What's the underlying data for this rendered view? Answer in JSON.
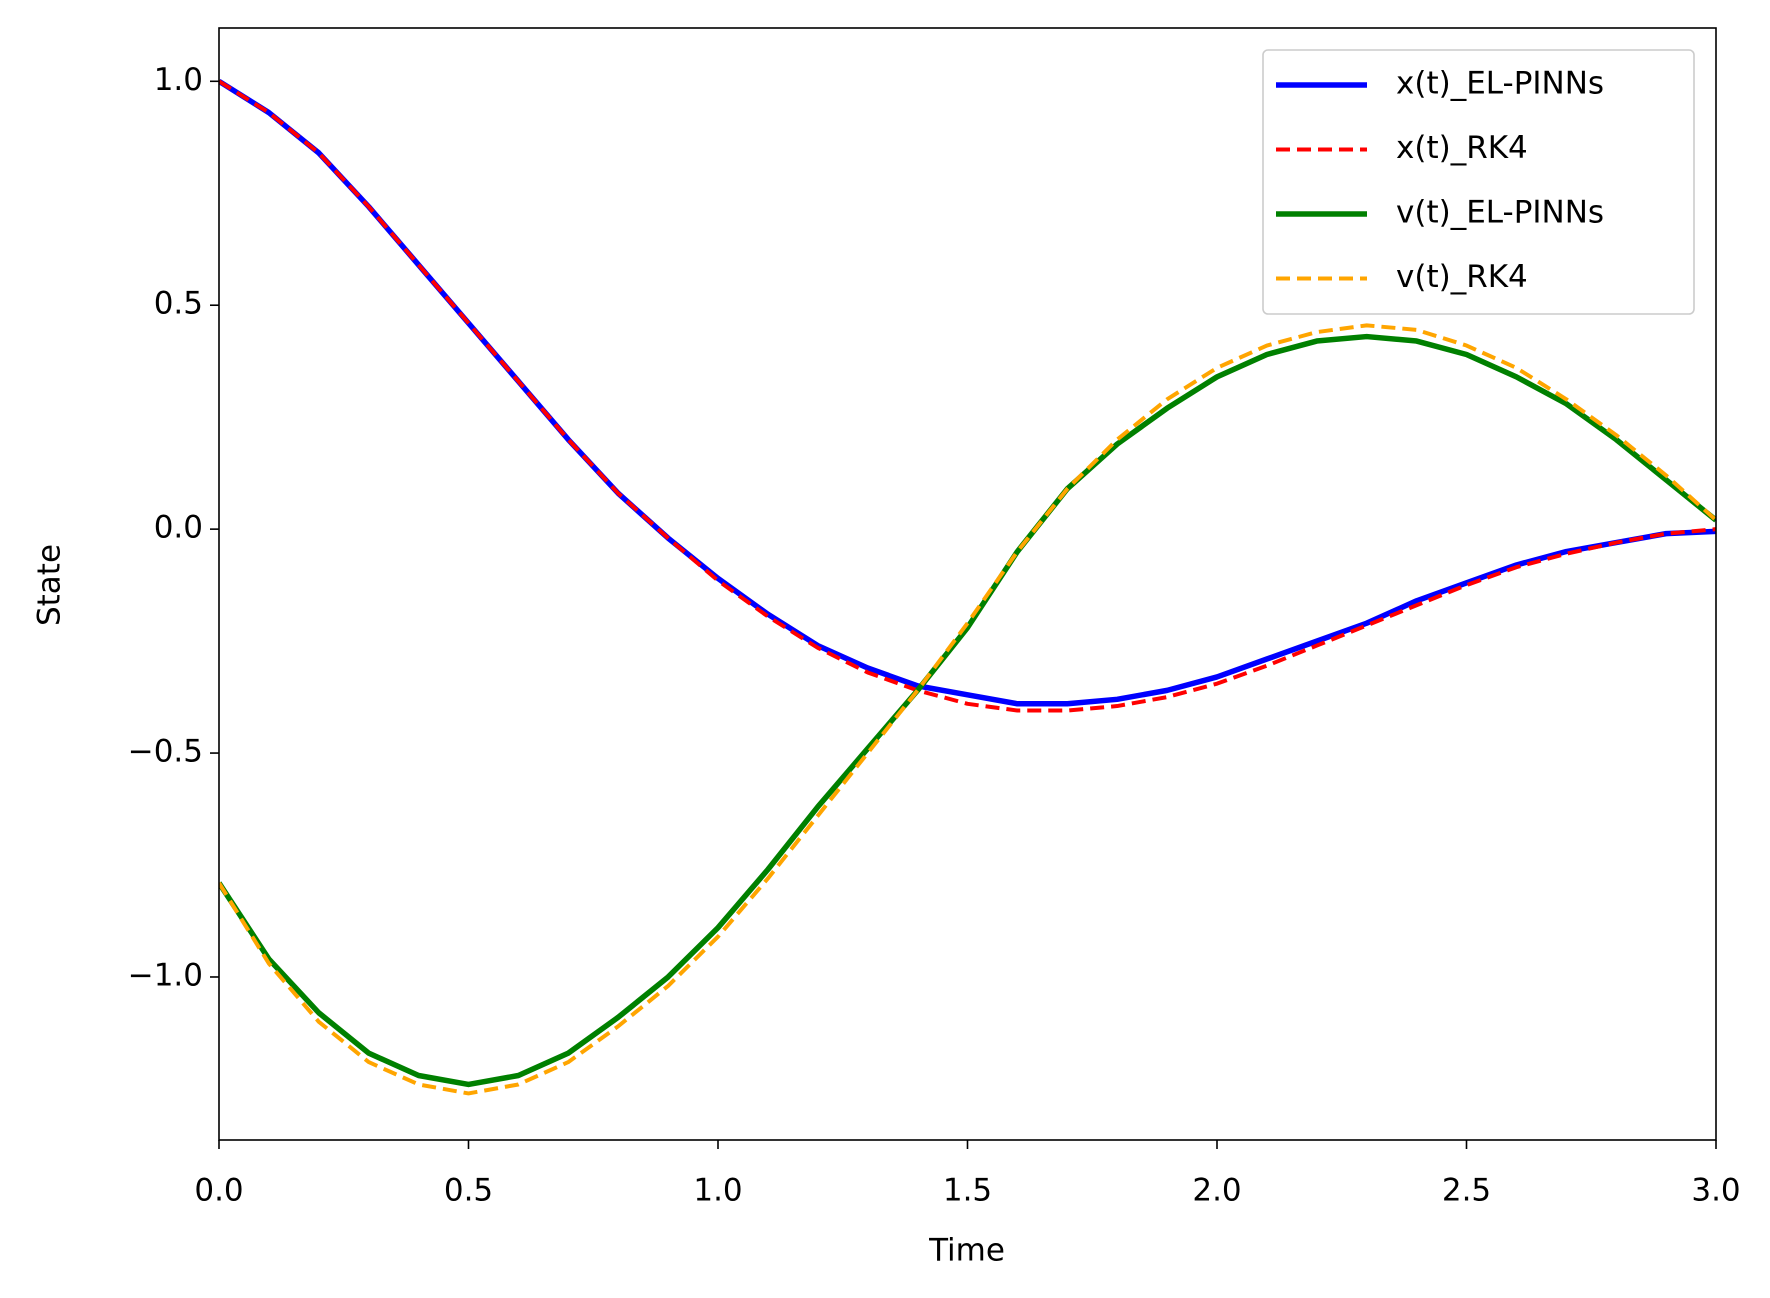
{
  "chart_data": {
    "type": "line",
    "xlabel": "Time",
    "ylabel": "State",
    "x": [
      0,
      0.1,
      0.2,
      0.3,
      0.4,
      0.5,
      0.6,
      0.7,
      0.8,
      0.9,
      1.0,
      1.1,
      1.2,
      1.3,
      1.4,
      1.5,
      1.6,
      1.7,
      1.8,
      1.9,
      2.0,
      2.1,
      2.2,
      2.3,
      2.4,
      2.5,
      2.6,
      2.7,
      2.8,
      2.9,
      3.0
    ],
    "series": [
      {
        "name": "x(t)_EL-PINNs",
        "color": "#0000ff",
        "dashed": false,
        "values": [
          1.0,
          0.93,
          0.84,
          0.72,
          0.59,
          0.46,
          0.33,
          0.2,
          0.08,
          -0.02,
          -0.11,
          -0.19,
          -0.26,
          -0.31,
          -0.35,
          -0.37,
          -0.39,
          -0.39,
          -0.38,
          -0.36,
          -0.33,
          -0.29,
          -0.25,
          -0.21,
          -0.16,
          -0.12,
          -0.08,
          -0.05,
          -0.03,
          -0.01,
          -0.005
        ]
      },
      {
        "name": "x(t)_RK4",
        "color": "#ff0000",
        "dashed": true,
        "values": [
          1.0,
          0.93,
          0.84,
          0.72,
          0.59,
          0.46,
          0.33,
          0.2,
          0.08,
          -0.02,
          -0.115,
          -0.195,
          -0.265,
          -0.32,
          -0.36,
          -0.39,
          -0.405,
          -0.405,
          -0.395,
          -0.375,
          -0.345,
          -0.305,
          -0.26,
          -0.215,
          -0.17,
          -0.125,
          -0.085,
          -0.055,
          -0.03,
          -0.01,
          0.0
        ]
      },
      {
        "name": "v(t)_EL-PINNs",
        "color": "#008000",
        "dashed": false,
        "values": [
          -0.79,
          -0.96,
          -1.08,
          -1.17,
          -1.22,
          -1.24,
          -1.22,
          -1.17,
          -1.09,
          -1.0,
          -0.89,
          -0.76,
          -0.62,
          -0.49,
          -0.36,
          -0.22,
          -0.05,
          0.09,
          0.19,
          0.27,
          0.34,
          0.39,
          0.42,
          0.43,
          0.42,
          0.39,
          0.34,
          0.28,
          0.2,
          0.11,
          0.02
        ]
      },
      {
        "name": "v(t)_RK4",
        "color": "#ffa500",
        "dashed": true,
        "values": [
          -0.79,
          -0.97,
          -1.1,
          -1.19,
          -1.24,
          -1.26,
          -1.24,
          -1.19,
          -1.11,
          -1.02,
          -0.91,
          -0.78,
          -0.64,
          -0.5,
          -0.36,
          -0.21,
          -0.05,
          0.09,
          0.2,
          0.29,
          0.36,
          0.41,
          0.44,
          0.455,
          0.445,
          0.41,
          0.36,
          0.29,
          0.21,
          0.12,
          0.02
        ]
      }
    ],
    "xlim": [
      0,
      3
    ],
    "ylim": [
      -1.364,
      1.119
    ],
    "xticks": [
      {
        "value": 0,
        "label": "0.0"
      },
      {
        "value": 0.5,
        "label": "0.5"
      },
      {
        "value": 1,
        "label": "1.0"
      },
      {
        "value": 1.5,
        "label": "1.5"
      },
      {
        "value": 2,
        "label": "2.0"
      },
      {
        "value": 2.5,
        "label": "2.5"
      },
      {
        "value": 3,
        "label": "3.0"
      }
    ],
    "yticks": [
      {
        "value": -1,
        "label": "−1.0"
      },
      {
        "value": -0.5,
        "label": "−0.5"
      },
      {
        "value": 0,
        "label": "0.0"
      },
      {
        "value": 0.5,
        "label": "0.5"
      },
      {
        "value": 1,
        "label": "1.0"
      }
    ],
    "grid": false,
    "legend": "upper right"
  }
}
